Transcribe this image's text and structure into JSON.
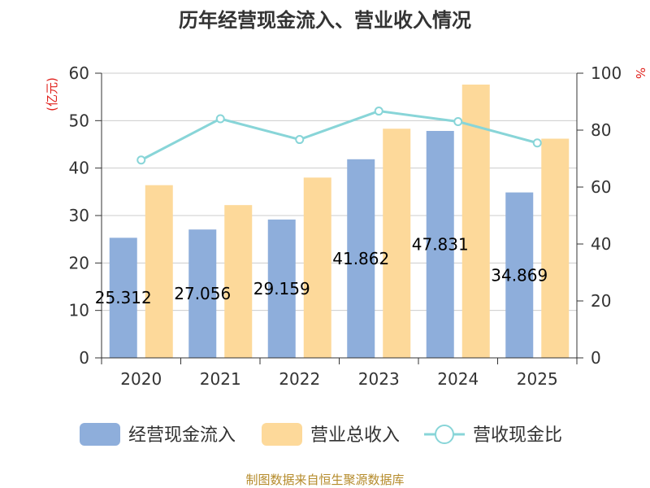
{
  "chart_data": {
    "type": "bar",
    "title": "历年经营现金流入、营业收入情况",
    "categories": [
      "2020",
      "2021",
      "2022",
      "2023",
      "2024",
      "2025"
    ],
    "y_left": {
      "unit": "(亿元)",
      "ylim": [
        0,
        60
      ],
      "ticks": [
        0,
        10,
        20,
        30,
        40,
        50,
        60
      ]
    },
    "y_right": {
      "unit": "%",
      "ylim": [
        0,
        100
      ],
      "ticks": [
        0,
        20,
        40,
        60,
        80,
        100
      ]
    },
    "series": [
      {
        "name": "经营现金流入",
        "type": "bar",
        "axis": "left",
        "color": "#8eaedb",
        "values": [
          25.312,
          27.056,
          29.159,
          41.862,
          47.831,
          34.869
        ],
        "labels": [
          "25.312",
          "27.056",
          "29.159",
          "41.862",
          "47.831",
          "34.869"
        ]
      },
      {
        "name": "营业总收入",
        "type": "bar",
        "axis": "left",
        "color": "#fdd99a",
        "values": [
          36.4,
          32.2,
          38.0,
          48.3,
          57.6,
          46.2
        ]
      },
      {
        "name": "营收现金比",
        "type": "line",
        "axis": "right",
        "color": "#88d5d8",
        "values": [
          69.5,
          84.0,
          76.7,
          86.7,
          83.0,
          75.5
        ]
      }
    ],
    "grid": true,
    "legend_position": "bottom"
  },
  "source": "制图数据来自恒生聚源数据库"
}
